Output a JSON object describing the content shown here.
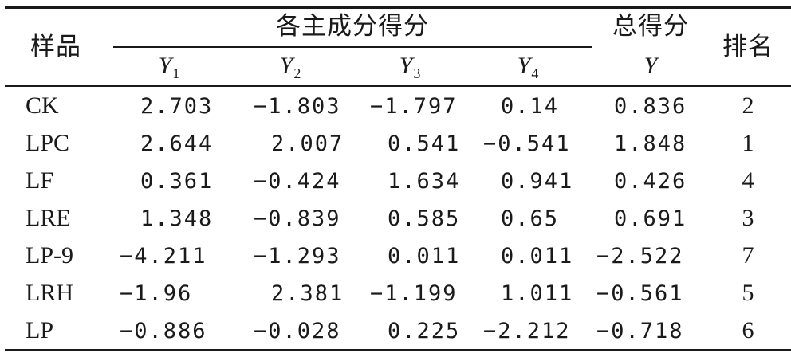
{
  "header": {
    "sample_label": "样品",
    "group_label": "各主成分得分",
    "total_label": "总得分",
    "rank_label": "排名",
    "components": [
      {
        "sym": "Y",
        "sub": "1"
      },
      {
        "sym": "Y",
        "sub": "2"
      },
      {
        "sym": "Y",
        "sub": "3"
      },
      {
        "sym": "Y",
        "sub": "4"
      }
    ],
    "total_sym": "Y"
  },
  "rows": [
    {
      "sample": "CK",
      "y1": "2.703",
      "y2": "−1.803",
      "y3": "−1.797",
      "y4": "0.14",
      "y": "0.836",
      "rank": "2"
    },
    {
      "sample": "LPC",
      "y1": "2.644",
      "y2": "2.007",
      "y3": "0.541",
      "y4": "−0.541",
      "y": "1.848",
      "rank": "1"
    },
    {
      "sample": "LF",
      "y1": "0.361",
      "y2": "−0.424",
      "y3": "1.634",
      "y4": "0.941",
      "y": "0.426",
      "rank": "4"
    },
    {
      "sample": "LRE",
      "y1": "1.348",
      "y2": "−0.839",
      "y3": "0.585",
      "y4": "0.65",
      "y": "0.691",
      "rank": "3"
    },
    {
      "sample": "LP-9",
      "y1": "−4.211",
      "y2": "−1.293",
      "y3": "0.011",
      "y4": "0.011",
      "y": "−2.522",
      "rank": "7"
    },
    {
      "sample": "LRH",
      "y1": "−1.96",
      "y2": "2.381",
      "y3": "−1.199",
      "y4": "1.011",
      "y": "−0.561",
      "rank": "5"
    },
    {
      "sample": "LP",
      "y1": "−0.886",
      "y2": "−0.028",
      "y3": "0.225",
      "y4": "−2.212",
      "y": "−0.718",
      "rank": "6"
    }
  ]
}
